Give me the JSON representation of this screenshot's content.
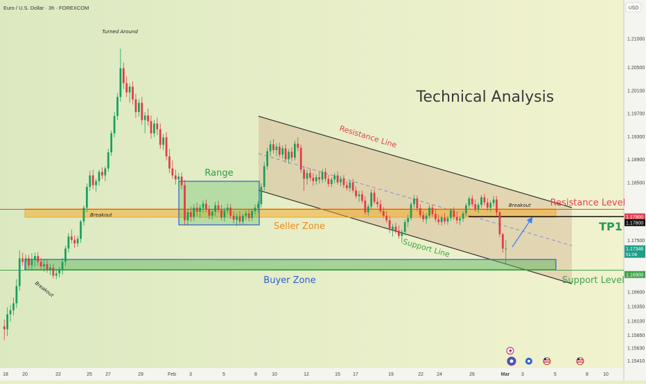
{
  "header": {
    "symbol_title": "Euro / U.S. Dollar · 3h · FOREXCOM",
    "currency_badge": "USD"
  },
  "chart_data": {
    "type": "candlestick",
    "title": "Technical Analysis",
    "ylim": [
      1.153,
      1.214
    ],
    "price_ticks": [
      "1.21000",
      "1.20500",
      "1.20100",
      "1.19700",
      "1.19300",
      "1.18900",
      "1.18500",
      "1.17500",
      "1.16600",
      "1.16350",
      "1.16100",
      "1.15850",
      "1.15630",
      "1.15410"
    ],
    "price_badges": [
      {
        "price": 1.179,
        "label": "1.17900",
        "color": "#e2424d",
        "dark": false
      },
      {
        "price": 1.178,
        "label": "1.17800",
        "color": "#111111",
        "dark": true
      },
      {
        "price": 1.17346,
        "label": "1.17346",
        "sub": "51:06",
        "color": "#1f9e8a",
        "dark": false
      },
      {
        "price": 1.169,
        "label": "1.16900",
        "color": "#3ea34a",
        "dark": false
      }
    ],
    "time_ticks": [
      "18",
      "20",
      "22",
      "25",
      "27",
      "29",
      "Feb",
      "3",
      "5",
      "8",
      "10",
      "12",
      "15",
      "17",
      "19",
      "22",
      "24",
      "26",
      "Mar",
      "3",
      "5",
      "8",
      "10"
    ],
    "time_tick_bold": "Mar",
    "annotations": {
      "turned_around": "Turned Around",
      "range": "Range",
      "breakout_left": "Breakout",
      "breakout_low": "Breakout",
      "breakout_right": "Breakout",
      "seller_zone": "Seller Zone",
      "buyer_zone": "Buyer Zone",
      "resistance_line": "Resistance Line",
      "support_line": "Support Line",
      "resistance_level": "Resistance Level",
      "support_level": "Support Level",
      "tp1": "TP1"
    },
    "levels": {
      "resistance_level": 1.179,
      "tp1": 1.178,
      "support_level": 1.169,
      "seller_zone": [
        1.1778,
        1.1792
      ],
      "buyer_zone": [
        1.169,
        1.1708
      ]
    },
    "candles": [
      [
        1.16,
        1.1612,
        1.1576,
        1.1595
      ],
      [
        1.1595,
        1.1633,
        1.1583,
        1.1621
      ],
      [
        1.1621,
        1.1637,
        1.1608,
        1.1628
      ],
      [
        1.1628,
        1.165,
        1.1619,
        1.164
      ],
      [
        1.164,
        1.1682,
        1.1632,
        1.167
      ],
      [
        1.167,
        1.1732,
        1.1662,
        1.1718
      ],
      [
        1.1718,
        1.1728,
        1.1705,
        1.1712
      ],
      [
        1.1712,
        1.1725,
        1.1698,
        1.1718
      ],
      [
        1.1718,
        1.1724,
        1.1701,
        1.1706
      ],
      [
        1.1706,
        1.1727,
        1.1697,
        1.1715
      ],
      [
        1.1715,
        1.1728,
        1.1704,
        1.1722
      ],
      [
        1.1722,
        1.1729,
        1.1706,
        1.1712
      ],
      [
        1.1712,
        1.1719,
        1.1697,
        1.1704
      ],
      [
        1.1704,
        1.1717,
        1.1695,
        1.1708
      ],
      [
        1.1708,
        1.1716,
        1.1693,
        1.1698
      ],
      [
        1.1698,
        1.1709,
        1.1689,
        1.1702
      ],
      [
        1.1702,
        1.1708,
        1.1683,
        1.1688
      ],
      [
        1.1688,
        1.1698,
        1.1682,
        1.1692
      ],
      [
        1.1692,
        1.1703,
        1.1685,
        1.1698
      ],
      [
        1.1698,
        1.1719,
        1.169,
        1.1712
      ],
      [
        1.1712,
        1.174,
        1.1705,
        1.1735
      ],
      [
        1.1735,
        1.1762,
        1.1728,
        1.1756
      ],
      [
        1.1756,
        1.1768,
        1.1744,
        1.175
      ],
      [
        1.175,
        1.1758,
        1.1736,
        1.1744
      ],
      [
        1.1744,
        1.1757,
        1.1738,
        1.1752
      ],
      [
        1.1752,
        1.1785,
        1.1745,
        1.1782
      ],
      [
        1.1782,
        1.181,
        1.1775,
        1.1806
      ],
      [
        1.1806,
        1.1848,
        1.1798,
        1.1842
      ],
      [
        1.1842,
        1.187,
        1.1835,
        1.1862
      ],
      [
        1.1862,
        1.1872,
        1.1838,
        1.1845
      ],
      [
        1.1845,
        1.1856,
        1.1834,
        1.1852
      ],
      [
        1.1852,
        1.1872,
        1.1844,
        1.1868
      ],
      [
        1.1868,
        1.1876,
        1.1856,
        1.1862
      ],
      [
        1.1862,
        1.1878,
        1.1852,
        1.1874
      ],
      [
        1.1874,
        1.1908,
        1.1868,
        1.1902
      ],
      [
        1.1902,
        1.194,
        1.1896,
        1.1935
      ],
      [
        1.1935,
        1.1972,
        1.1928,
        1.1965
      ],
      [
        1.1965,
        1.2005,
        1.1958,
        1.1998
      ],
      [
        1.1998,
        1.2082,
        1.199,
        1.2048
      ],
      [
        1.2048,
        1.2058,
        1.2012,
        1.2022
      ],
      [
        1.2022,
        1.2034,
        1.1998,
        1.2006
      ],
      [
        1.2006,
        1.2022,
        1.1988,
        1.2016
      ],
      [
        1.2016,
        1.2025,
        1.1985,
        1.1994
      ],
      [
        1.1994,
        1.2004,
        1.1962,
        1.1972
      ],
      [
        1.1972,
        1.1994,
        1.1964,
        1.1988
      ],
      [
        1.1988,
        1.1998,
        1.195,
        1.1958
      ],
      [
        1.1958,
        1.1972,
        1.1935,
        1.1966
      ],
      [
        1.1966,
        1.1978,
        1.1948,
        1.1956
      ],
      [
        1.1956,
        1.1966,
        1.1926,
        1.1935
      ],
      [
        1.1935,
        1.1958,
        1.1928,
        1.1952
      ],
      [
        1.1952,
        1.1962,
        1.1932,
        1.1942
      ],
      [
        1.1942,
        1.1952,
        1.1908,
        1.1915
      ],
      [
        1.1915,
        1.1934,
        1.1906,
        1.1928
      ],
      [
        1.1928,
        1.1937,
        1.1888,
        1.1895
      ],
      [
        1.1895,
        1.1908,
        1.1866,
        1.1874
      ],
      [
        1.1874,
        1.1888,
        1.1856,
        1.1862
      ],
      [
        1.1862,
        1.1872,
        1.1846,
        1.1855
      ],
      [
        1.1855,
        1.1866,
        1.1842,
        1.186
      ],
      [
        1.186,
        1.1867,
        1.1838,
        1.1845
      ],
      [
        1.1845,
        1.1854,
        1.1775,
        1.1784
      ],
      [
        1.1784,
        1.1803,
        1.1775,
        1.1798
      ],
      [
        1.1798,
        1.1808,
        1.1782,
        1.179
      ],
      [
        1.179,
        1.1812,
        1.1783,
        1.1806
      ],
      [
        1.1806,
        1.1815,
        1.1792,
        1.1799
      ],
      [
        1.1799,
        1.1811,
        1.1789,
        1.1806
      ],
      [
        1.1806,
        1.1818,
        1.1797,
        1.1813
      ],
      [
        1.1813,
        1.182,
        1.1798,
        1.1803
      ],
      [
        1.1803,
        1.181,
        1.1786,
        1.1792
      ],
      [
        1.1792,
        1.1803,
        1.1785,
        1.1799
      ],
      [
        1.1799,
        1.1816,
        1.1792,
        1.181
      ],
      [
        1.181,
        1.1818,
        1.1797,
        1.1802
      ],
      [
        1.1802,
        1.1811,
        1.1784,
        1.1789
      ],
      [
        1.1789,
        1.1806,
        1.1782,
        1.1801
      ],
      [
        1.1801,
        1.1813,
        1.1795,
        1.1806
      ],
      [
        1.1806,
        1.1812,
        1.1787,
        1.1792
      ],
      [
        1.1792,
        1.18,
        1.1779,
        1.1785
      ],
      [
        1.1785,
        1.1796,
        1.1774,
        1.1791
      ],
      [
        1.1791,
        1.18,
        1.1777,
        1.1782
      ],
      [
        1.1782,
        1.1795,
        1.1776,
        1.1792
      ],
      [
        1.1792,
        1.1801,
        1.1784,
        1.1796
      ],
      [
        1.1796,
        1.1803,
        1.1782,
        1.1788
      ],
      [
        1.1788,
        1.1804,
        1.1783,
        1.18
      ],
      [
        1.18,
        1.1812,
        1.1794,
        1.1806
      ],
      [
        1.1806,
        1.1817,
        1.1797,
        1.1812
      ],
      [
        1.1812,
        1.1848,
        1.1806,
        1.1842
      ],
      [
        1.1842,
        1.1885,
        1.1836,
        1.1878
      ],
      [
        1.1878,
        1.191,
        1.1872,
        1.1904
      ],
      [
        1.1904,
        1.1922,
        1.1895,
        1.1916
      ],
      [
        1.1916,
        1.1925,
        1.19,
        1.1906
      ],
      [
        1.1906,
        1.1918,
        1.1895,
        1.1912
      ],
      [
        1.1912,
        1.1919,
        1.1893,
        1.1898
      ],
      [
        1.1898,
        1.1914,
        1.1891,
        1.1909
      ],
      [
        1.1909,
        1.1916,
        1.1884,
        1.189
      ],
      [
        1.189,
        1.1908,
        1.1882,
        1.1903
      ],
      [
        1.1903,
        1.1911,
        1.1887,
        1.1893
      ],
      [
        1.1893,
        1.1922,
        1.1888,
        1.1917
      ],
      [
        1.1917,
        1.1928,
        1.1904,
        1.191
      ],
      [
        1.191,
        1.1915,
        1.1866,
        1.1872
      ],
      [
        1.1872,
        1.1878,
        1.1835,
        1.1856
      ],
      [
        1.1856,
        1.1872,
        1.1846,
        1.1866
      ],
      [
        1.1866,
        1.1874,
        1.1852,
        1.1858
      ],
      [
        1.1858,
        1.1866,
        1.1844,
        1.1852
      ],
      [
        1.1852,
        1.1864,
        1.1846,
        1.1859
      ],
      [
        1.1859,
        1.1868,
        1.1848,
        1.1855
      ],
      [
        1.1855,
        1.1873,
        1.1849,
        1.1868
      ],
      [
        1.1868,
        1.1875,
        1.1851,
        1.1856
      ],
      [
        1.1856,
        1.1863,
        1.1842,
        1.1847
      ],
      [
        1.1847,
        1.1859,
        1.1841,
        1.1855
      ],
      [
        1.1855,
        1.1866,
        1.1848,
        1.1862
      ],
      [
        1.1862,
        1.1869,
        1.1846,
        1.185
      ],
      [
        1.185,
        1.1861,
        1.1843,
        1.1856
      ],
      [
        1.1856,
        1.1863,
        1.184,
        1.1845
      ],
      [
        1.1845,
        1.1852,
        1.1836,
        1.184
      ],
      [
        1.184,
        1.1854,
        1.1834,
        1.185
      ],
      [
        1.185,
        1.1856,
        1.1832,
        1.1836
      ],
      [
        1.1836,
        1.1843,
        1.1822,
        1.1826
      ],
      [
        1.1826,
        1.1835,
        1.1816,
        1.1829
      ],
      [
        1.1829,
        1.1836,
        1.1814,
        1.1818
      ],
      [
        1.1818,
        1.1826,
        1.1794,
        1.1798
      ],
      [
        1.1798,
        1.1812,
        1.1792,
        1.1808
      ],
      [
        1.1808,
        1.1838,
        1.1804,
        1.1832
      ],
      [
        1.1832,
        1.1838,
        1.1812,
        1.1816
      ],
      [
        1.1816,
        1.1824,
        1.1806,
        1.1812
      ],
      [
        1.1812,
        1.182,
        1.1796,
        1.18
      ],
      [
        1.18,
        1.1807,
        1.1788,
        1.1792
      ],
      [
        1.1792,
        1.18,
        1.178,
        1.1784
      ],
      [
        1.1784,
        1.1791,
        1.1762,
        1.1768
      ],
      [
        1.1768,
        1.1778,
        1.1756,
        1.1773
      ],
      [
        1.1773,
        1.178,
        1.1761,
        1.1766
      ],
      [
        1.1766,
        1.1775,
        1.1752,
        1.1757
      ],
      [
        1.1757,
        1.1768,
        1.1745,
        1.1764
      ],
      [
        1.1764,
        1.1786,
        1.1758,
        1.1781
      ],
      [
        1.1781,
        1.1794,
        1.1772,
        1.1788
      ],
      [
        1.1788,
        1.1816,
        1.1784,
        1.1812
      ],
      [
        1.1812,
        1.1828,
        1.1806,
        1.1822
      ],
      [
        1.1822,
        1.1827,
        1.18,
        1.1805
      ],
      [
        1.1805,
        1.1812,
        1.1788,
        1.1793
      ],
      [
        1.1793,
        1.18,
        1.1781,
        1.1786
      ],
      [
        1.1786,
        1.1797,
        1.1778,
        1.1792
      ],
      [
        1.1792,
        1.1811,
        1.1787,
        1.1806
      ],
      [
        1.1806,
        1.1812,
        1.179,
        1.1795
      ],
      [
        1.1795,
        1.1804,
        1.1781,
        1.1786
      ],
      [
        1.1786,
        1.1794,
        1.1776,
        1.1781
      ],
      [
        1.1781,
        1.1793,
        1.1775,
        1.1789
      ],
      [
        1.1789,
        1.1797,
        1.1777,
        1.1782
      ],
      [
        1.1782,
        1.1792,
        1.1776,
        1.1788
      ],
      [
        1.1788,
        1.1805,
        1.1783,
        1.1801
      ],
      [
        1.1801,
        1.1807,
        1.1785,
        1.179
      ],
      [
        1.179,
        1.1798,
        1.1778,
        1.1784
      ],
      [
        1.1784,
        1.1792,
        1.1776,
        1.1787
      ],
      [
        1.1787,
        1.18,
        1.1781,
        1.1796
      ],
      [
        1.1796,
        1.1814,
        1.1791,
        1.181
      ],
      [
        1.181,
        1.1826,
        1.1805,
        1.1822
      ],
      [
        1.1822,
        1.1828,
        1.1807,
        1.1812
      ],
      [
        1.1812,
        1.182,
        1.1799,
        1.1804
      ],
      [
        1.1804,
        1.1815,
        1.1797,
        1.1811
      ],
      [
        1.1811,
        1.1828,
        1.1806,
        1.1824
      ],
      [
        1.1824,
        1.183,
        1.181,
        1.1815
      ],
      [
        1.1815,
        1.1822,
        1.1801,
        1.1806
      ],
      [
        1.1806,
        1.1818,
        1.1799,
        1.1814
      ],
      [
        1.1814,
        1.1826,
        1.1808,
        1.182
      ],
      [
        1.182,
        1.1826,
        1.1792,
        1.1798
      ],
      [
        1.1798,
        1.18,
        1.1755,
        1.176
      ],
      [
        1.176,
        1.1762,
        1.1728,
        1.1735
      ],
      [
        1.1735,
        1.175,
        1.1708,
        1.1735
      ]
    ]
  }
}
